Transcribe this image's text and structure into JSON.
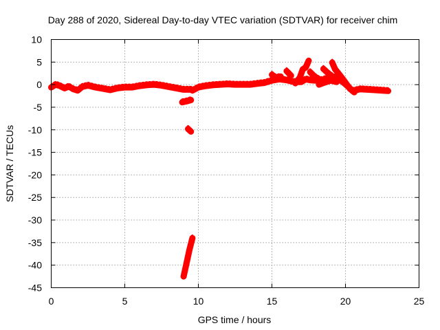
{
  "chart_data": {
    "type": "scatter",
    "title": "Day 288 of 2020, Sidereal Day-to-day VTEC variation (SDTVAR) for receiver chim",
    "xlabel": "GPS time / hours",
    "ylabel": "SDTVAR / TECUs",
    "xlim": [
      0,
      25
    ],
    "ylim": [
      -45,
      10
    ],
    "xticks": [
      0,
      5,
      10,
      15,
      20,
      25
    ],
    "yticks": [
      10,
      5,
      0,
      -5,
      -10,
      -15,
      -20,
      -25,
      -30,
      -35,
      -40,
      -45
    ],
    "grid": true,
    "series": [
      {
        "name": "SDTVAR",
        "color": "#ff0000",
        "segments": [
          [
            [
              0.0,
              -0.6
            ],
            [
              0.3,
              0.0
            ],
            [
              0.6,
              -0.3
            ],
            [
              0.9,
              -0.8
            ],
            [
              1.2,
              -0.4
            ],
            [
              1.5,
              -1.0
            ],
            [
              1.8,
              -1.3
            ],
            [
              2.1,
              -0.5
            ],
            [
              2.5,
              -0.2
            ],
            [
              3.0,
              -0.6
            ],
            [
              3.5,
              -0.9
            ],
            [
              4.0,
              -1.2
            ],
            [
              4.5,
              -0.8
            ],
            [
              5.0,
              -0.6
            ],
            [
              5.5,
              -0.6
            ],
            [
              6.0,
              -0.3
            ],
            [
              6.5,
              -0.1
            ],
            [
              7.0,
              0.0
            ],
            [
              7.5,
              -0.2
            ],
            [
              8.0,
              -0.5
            ],
            [
              8.5,
              -0.8
            ],
            [
              9.0,
              -1.1
            ],
            [
              9.5,
              -1.1
            ]
          ],
          [
            [
              8.9,
              -3.9
            ],
            [
              9.2,
              -3.7
            ],
            [
              9.5,
              -3.4
            ]
          ],
          [
            [
              9.3,
              -9.8
            ],
            [
              9.5,
              -10.4
            ]
          ],
          [
            [
              9.0,
              -42.5
            ],
            [
              9.2,
              -39.5
            ],
            [
              9.4,
              -36.5
            ],
            [
              9.6,
              -34.0
            ]
          ],
          [
            [
              9.6,
              -1.3
            ],
            [
              10.0,
              -0.6
            ],
            [
              10.5,
              -0.3
            ],
            [
              11.0,
              -0.1
            ],
            [
              11.5,
              0.0
            ],
            [
              12.0,
              0.1
            ],
            [
              12.5,
              0.0
            ],
            [
              13.0,
              0.0
            ],
            [
              13.5,
              0.0
            ],
            [
              14.0,
              0.2
            ],
            [
              14.5,
              0.4
            ],
            [
              15.0,
              0.9
            ],
            [
              15.5,
              1.2
            ],
            [
              16.0,
              1.0
            ],
            [
              16.5,
              0.6
            ],
            [
              17.0,
              0.6
            ],
            [
              17.3,
              1.2
            ],
            [
              17.6,
              1.0
            ],
            [
              18.0,
              0.9
            ],
            [
              18.5,
              1.1
            ],
            [
              19.0,
              1.8
            ],
            [
              19.5,
              1.4
            ],
            [
              20.0,
              0.1
            ],
            [
              20.5,
              -1.4
            ],
            [
              21.0,
              -1.0
            ],
            [
              21.5,
              -1.1
            ],
            [
              22.0,
              -1.2
            ],
            [
              22.5,
              -1.3
            ],
            [
              22.9,
              -1.4
            ]
          ],
          [
            [
              15.0,
              2.2
            ],
            [
              15.3,
              1.5
            ],
            [
              15.6,
              1.8
            ]
          ],
          [
            [
              16.0,
              3.0
            ],
            [
              16.3,
              2.0
            ]
          ],
          [
            [
              16.6,
              0.3
            ],
            [
              16.9,
              1.6
            ],
            [
              17.1,
              3.4
            ],
            [
              17.3,
              3.8
            ],
            [
              17.5,
              5.3
            ]
          ],
          [
            [
              17.6,
              2.8
            ],
            [
              17.9,
              1.8
            ],
            [
              18.2,
              1.2
            ]
          ],
          [
            [
              18.5,
              3.5
            ],
            [
              18.8,
              2.6
            ],
            [
              19.0,
              2.1
            ],
            [
              19.3,
              1.3
            ],
            [
              19.6,
              1.0
            ]
          ],
          [
            [
              19.1,
              4.9
            ],
            [
              19.3,
              3.4
            ],
            [
              19.6,
              2.2
            ],
            [
              19.9,
              0.9
            ],
            [
              20.3,
              -0.9
            ],
            [
              20.6,
              -1.7
            ]
          ],
          [
            [
              18.2,
              0.0
            ],
            [
              18.6,
              0.5
            ],
            [
              19.0,
              0.9
            ],
            [
              19.4,
              0.6
            ]
          ]
        ]
      }
    ]
  }
}
